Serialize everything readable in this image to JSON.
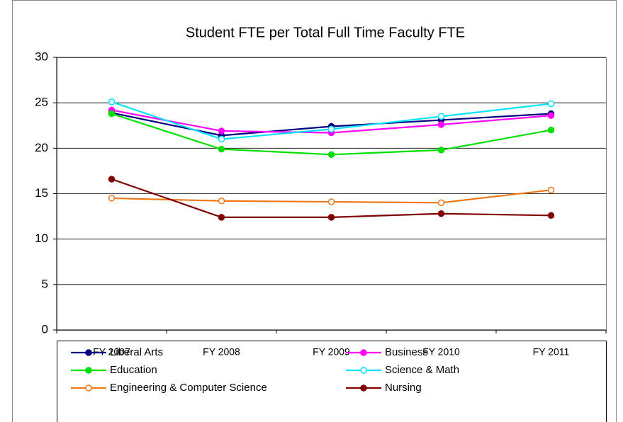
{
  "chart_data": {
    "type": "line",
    "title": "Student FTE per Total Full Time Faculty FTE",
    "categories": [
      "FY 2007",
      "FY 2008",
      "FY 2009",
      "FY 2010",
      "FY 2011"
    ],
    "ylim": [
      0,
      30
    ],
    "yticks": [
      0,
      5,
      10,
      15,
      20,
      25,
      30
    ],
    "grid": true,
    "legend": "bottom",
    "series": [
      {
        "name": "Liberal Arts",
        "color": "#000080",
        "marker": "filled",
        "values": [
          23.9,
          21.4,
          22.4,
          23.1,
          23.8
        ]
      },
      {
        "name": "Business",
        "color": "#ff00ff",
        "marker": "filled",
        "values": [
          24.2,
          21.9,
          21.7,
          22.6,
          23.6
        ]
      },
      {
        "name": "Education",
        "color": "#00e000",
        "marker": "filled",
        "values": [
          23.8,
          19.9,
          19.3,
          19.8,
          22.0
        ]
      },
      {
        "name": "Science & Math",
        "color": "#00e5ff",
        "marker": "hollow",
        "values": [
          25.1,
          21.0,
          22.1,
          23.5,
          24.9
        ]
      },
      {
        "name": "Engineering & Computer Science",
        "color": "#f07818",
        "marker": "hollow",
        "values": [
          14.5,
          14.2,
          14.1,
          14.0,
          15.4
        ]
      },
      {
        "name": "Nursing",
        "color": "#800000",
        "marker": "filled",
        "values": [
          16.6,
          12.4,
          12.4,
          12.8,
          12.6
        ]
      }
    ]
  }
}
